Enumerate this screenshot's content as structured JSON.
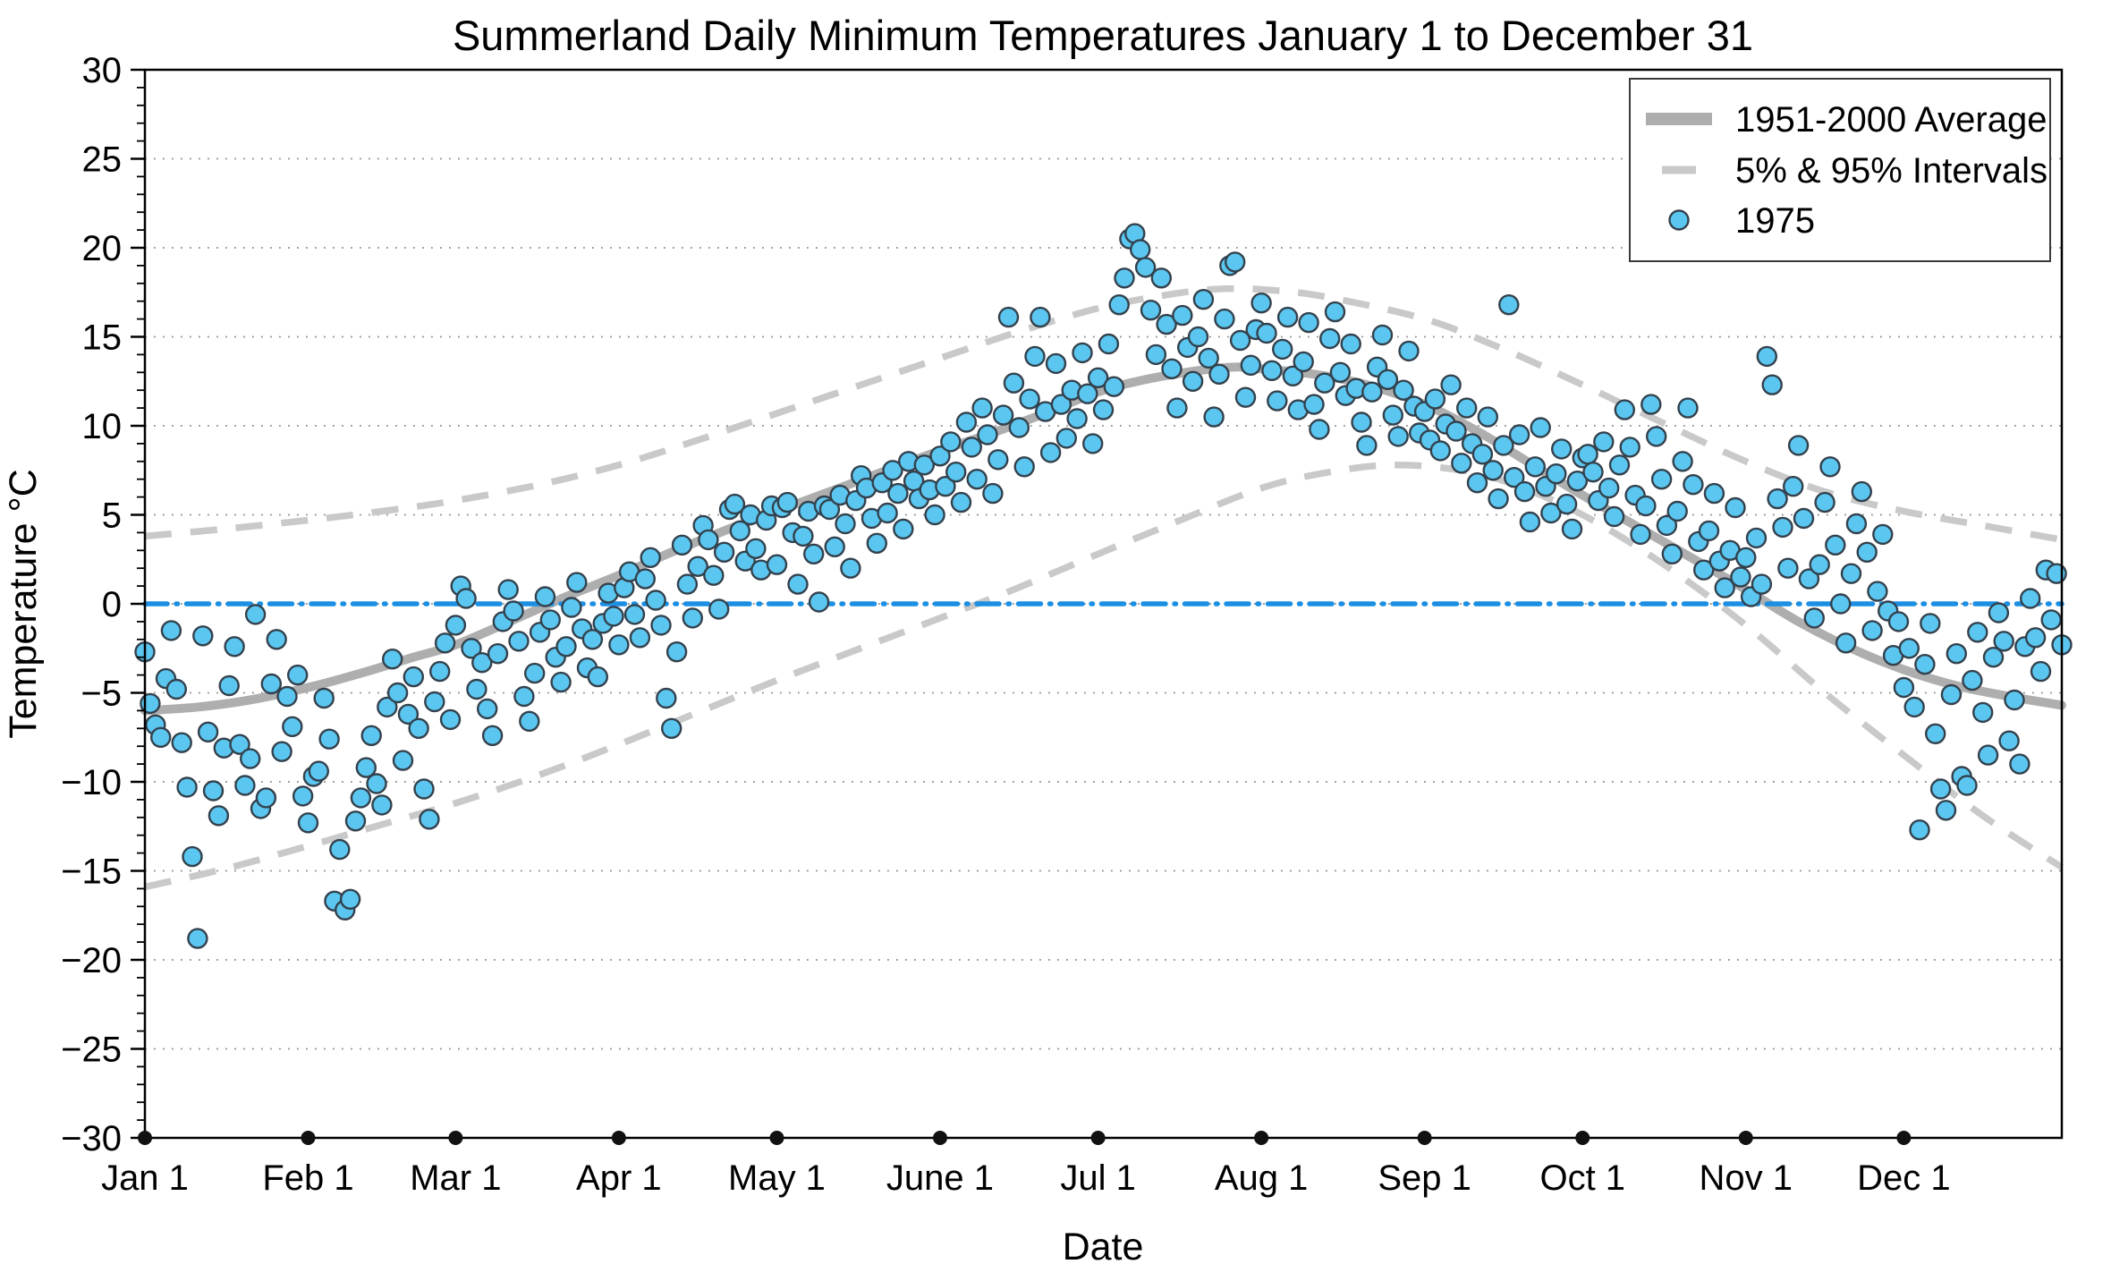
{
  "title": "Summerland Daily Minimum Temperatures January 1 to December 31",
  "axes": {
    "x_label": "Date",
    "y_label": "Temperature °C",
    "y_tick_values": [
      30,
      25,
      20,
      15,
      10,
      5,
      0,
      -5,
      -10,
      -15,
      -20,
      -25,
      -30
    ],
    "y_tick_labels": [
      "30",
      "25",
      "20",
      "15",
      "10",
      "5",
      "0",
      "−5",
      "−10",
      "−15",
      "−20",
      "−25",
      "−30"
    ],
    "y_gridline_values": [
      25,
      20,
      15,
      10,
      5,
      0,
      -5,
      -10,
      -15,
      -20,
      -25
    ],
    "x_tick_days": [
      0,
      31,
      59,
      90,
      120,
      151,
      181,
      212,
      243,
      273,
      304,
      334
    ],
    "x_tick_labels": [
      "Jan 1",
      "Feb 1",
      "Mar 1",
      "Apr 1",
      "May 1",
      "June 1",
      "Jul 1",
      "Aug 1",
      "Sep 1",
      "Oct 1",
      "Nov 1",
      "Dec 1"
    ],
    "x_range_days": [
      0,
      364
    ],
    "y_range": [
      -30,
      30
    ]
  },
  "legend": {
    "items": [
      {
        "label": "1951-2000 Average",
        "swatch": "thick-gray-line"
      },
      {
        "label": "5% & 95% Intervals",
        "swatch": "dashed-gray-line"
      },
      {
        "label": "1975",
        "swatch": "blue-circle-marker"
      }
    ]
  },
  "colors": {
    "scatter_fill": "#5bc7f0",
    "scatter_edge": "#33414d",
    "average_line": "#aeaeae",
    "interval_line": "#c9c9c9",
    "zero_line": "#1a8fe3",
    "gridline": "#8c8c8c",
    "axis": "#000000",
    "month_dot": "#111111",
    "legend_border": "#3a3a3a",
    "background": "#ffffff"
  },
  "chart_data": {
    "type": "scatter",
    "title": "Summerland Daily Minimum Temperatures January 1 to December 31",
    "xlabel": "Date",
    "ylabel": "Temperature °C",
    "ylim": [
      -30,
      30
    ],
    "x_unit": "day of year (0 = Jan 1)",
    "grid": "horizontal dotted every 5 °C",
    "legend_position": "top-right",
    "series": [
      {
        "name": "1951-2000 Average",
        "type": "line",
        "style": "thick solid gray",
        "x": [
          0,
          10,
          20,
          31,
          41,
          51,
          59,
          70,
          80,
          90,
          100,
          110,
          120,
          130,
          140,
          151,
          160,
          170,
          181,
          190,
          200,
          207,
          212,
          222,
          232,
          243,
          253,
          263,
          273,
          283,
          293,
          304,
          314,
          324,
          334,
          344,
          354,
          364
        ],
        "y": [
          -6.0,
          -5.8,
          -5.4,
          -4.7,
          -3.9,
          -3.0,
          -2.3,
          -0.9,
          0.4,
          1.6,
          2.9,
          4.1,
          5.2,
          6.3,
          7.4,
          8.6,
          9.5,
          10.6,
          11.9,
          12.6,
          13.1,
          13.3,
          13.2,
          12.9,
          12.3,
          11.2,
          9.7,
          7.9,
          6.1,
          4.4,
          2.7,
          0.8,
          -1.0,
          -2.5,
          -3.7,
          -4.6,
          -5.2,
          -5.7
        ]
      },
      {
        "name": "95% Interval",
        "type": "line",
        "style": "dashed gray",
        "x": [
          0,
          15,
          31,
          45,
          59,
          75,
          90,
          105,
          120,
          135,
          151,
          165,
          181,
          195,
          205,
          215,
          225,
          243,
          258,
          273,
          288,
          304,
          319,
          334,
          349,
          364
        ],
        "y": [
          3.8,
          4.2,
          4.7,
          5.2,
          5.8,
          6.7,
          7.8,
          9.2,
          10.7,
          12.2,
          13.8,
          15.2,
          16.6,
          17.4,
          17.7,
          17.6,
          17.2,
          16.0,
          14.3,
          12.3,
          10.2,
          8.0,
          6.3,
          5.2,
          4.4,
          3.6
        ]
      },
      {
        "name": "5% Interval",
        "type": "line",
        "style": "dashed gray",
        "x": [
          0,
          15,
          31,
          45,
          59,
          75,
          90,
          105,
          120,
          135,
          151,
          165,
          181,
          195,
          212,
          225,
          237,
          250,
          260,
          273,
          288,
          304,
          319,
          334,
          349,
          364
        ],
        "y": [
          -15.9,
          -14.9,
          -13.6,
          -12.4,
          -11.2,
          -9.6,
          -7.9,
          -6.1,
          -4.3,
          -2.6,
          -0.8,
          0.8,
          2.8,
          4.5,
          6.5,
          7.4,
          7.8,
          7.5,
          6.7,
          5.0,
          2.3,
          -1.2,
          -5.0,
          -8.5,
          -11.9,
          -14.8
        ]
      },
      {
        "name": "Zero reference",
        "type": "hline",
        "style": "dash-dot blue",
        "y_const": 0
      },
      {
        "name": "1975",
        "type": "scatter",
        "marker": "circle",
        "note": "daily minimum temperature, index = day of year starting Jan 1",
        "day_temps": [
          -2.7,
          -5.6,
          -6.8,
          -7.5,
          -4.2,
          -1.5,
          -4.8,
          -7.8,
          -10.3,
          -14.2,
          -18.8,
          -1.8,
          -7.2,
          -10.5,
          -11.9,
          -8.1,
          -4.6,
          -2.4,
          -7.9,
          -10.2,
          -8.7,
          -0.6,
          -11.5,
          -10.9,
          -4.5,
          -2.0,
          -8.3,
          -5.2,
          -6.9,
          -4.0,
          -10.8,
          -12.3,
          -9.7,
          -9.4,
          -5.3,
          -7.6,
          -16.7,
          -13.8,
          -17.2,
          -16.6,
          -12.2,
          -10.9,
          -9.2,
          -7.4,
          -10.1,
          -11.3,
          -5.8,
          -3.1,
          -5.0,
          -8.8,
          -6.2,
          -4.1,
          -7.0,
          -10.4,
          -12.1,
          -5.5,
          -3.8,
          -2.2,
          -6.5,
          -1.2,
          1.0,
          0.3,
          -2.5,
          -4.8,
          -3.3,
          -5.9,
          -7.4,
          -2.8,
          -1.0,
          0.8,
          -0.4,
          -2.1,
          -5.2,
          -6.6,
          -3.9,
          -1.6,
          0.4,
          -0.9,
          -3.0,
          -4.4,
          -2.4,
          -0.2,
          1.2,
          -1.4,
          -3.6,
          -2.0,
          -4.1,
          -1.1,
          0.6,
          -0.7,
          -2.3,
          0.9,
          1.8,
          -0.6,
          -1.9,
          1.4,
          2.6,
          0.2,
          -1.2,
          -5.3,
          -7.0,
          -2.7,
          3.3,
          1.1,
          -0.8,
          2.1,
          4.4,
          3.6,
          1.6,
          -0.3,
          2.9,
          5.3,
          5.6,
          4.1,
          2.4,
          5.0,
          3.1,
          1.9,
          4.7,
          5.5,
          2.2,
          5.4,
          5.7,
          4.0,
          1.1,
          3.8,
          5.2,
          2.8,
          0.1,
          5.5,
          5.3,
          3.2,
          6.1,
          4.5,
          2.0,
          5.8,
          7.2,
          6.5,
          4.8,
          3.4,
          6.8,
          5.1,
          7.5,
          6.2,
          4.2,
          8.0,
          6.9,
          5.9,
          7.8,
          6.4,
          5.0,
          8.3,
          6.6,
          9.1,
          7.4,
          5.7,
          10.2,
          8.8,
          7.0,
          11.0,
          9.5,
          6.2,
          8.1,
          10.6,
          16.1,
          12.4,
          9.9,
          7.7,
          11.5,
          13.9,
          16.1,
          10.8,
          8.5,
          13.5,
          11.2,
          9.3,
          12.0,
          10.4,
          14.1,
          11.8,
          9.0,
          12.7,
          10.9,
          14.6,
          12.2,
          16.8,
          18.3,
          20.5,
          20.8,
          19.9,
          18.9,
          16.5,
          14.0,
          18.3,
          15.7,
          13.2,
          11.0,
          16.2,
          14.4,
          12.5,
          15.0,
          17.1,
          13.8,
          10.5,
          12.9,
          16.0,
          19.0,
          19.2,
          14.8,
          11.6,
          13.4,
          15.4,
          16.9,
          15.2,
          13.1,
          11.4,
          14.3,
          16.1,
          12.8,
          10.9,
          13.6,
          15.8,
          11.2,
          9.8,
          12.4,
          14.9,
          16.4,
          13.0,
          11.7,
          14.6,
          12.1,
          10.2,
          8.9,
          11.9,
          13.3,
          15.1,
          12.6,
          10.6,
          9.4,
          12.0,
          14.2,
          11.1,
          9.6,
          10.8,
          9.2,
          11.5,
          8.6,
          10.1,
          12.3,
          9.7,
          7.9,
          11.0,
          9.0,
          6.8,
          8.4,
          10.5,
          7.5,
          5.9,
          8.9,
          16.8,
          7.1,
          9.5,
          6.3,
          4.6,
          7.7,
          9.9,
          6.6,
          5.1,
          7.3,
          8.7,
          5.6,
          4.2,
          6.9,
          8.2,
          8.4,
          7.4,
          5.8,
          9.1,
          6.5,
          4.9,
          7.8,
          10.9,
          8.8,
          6.1,
          3.9,
          5.5,
          11.2,
          9.4,
          7.0,
          4.4,
          2.8,
          5.2,
          8.0,
          11.0,
          6.7,
          3.5,
          1.9,
          4.1,
          6.2,
          2.4,
          0.9,
          3.0,
          5.4,
          1.5,
          2.6,
          0.4,
          3.7,
          1.1,
          13.9,
          12.3,
          5.9,
          4.3,
          2.0,
          6.6,
          8.9,
          4.8,
          1.4,
          -0.8,
          2.2,
          5.7,
          7.7,
          3.3,
          0.0,
          -2.2,
          1.7,
          4.5,
          6.3,
          2.9,
          -1.5,
          0.7,
          3.9,
          -0.4,
          -2.9,
          -1.0,
          -4.7,
          -2.5,
          -5.8,
          -12.7,
          -3.4,
          -1.1,
          -7.3,
          -10.4,
          -11.6,
          -5.1,
          -2.8,
          -9.7,
          -10.2,
          -4.3,
          -1.6,
          -6.1,
          -8.5,
          -3.0,
          -0.5,
          -2.1,
          -7.7,
          -5.4,
          -9.0,
          -2.4,
          0.3,
          -1.9,
          -3.8,
          1.9,
          -0.9,
          1.7,
          -2.3
        ]
      }
    ]
  }
}
